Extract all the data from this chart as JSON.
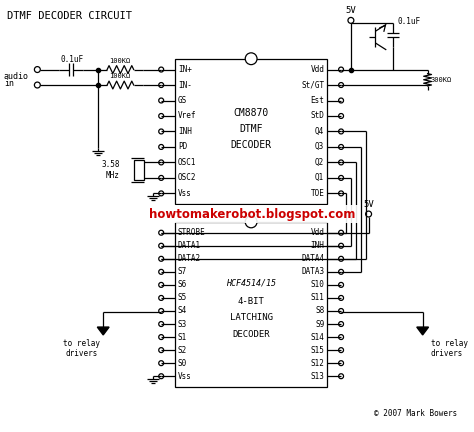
{
  "title": "DTMF DECODER CIRCUIT",
  "background_color": "#ffffff",
  "text_color": "#000000",
  "url_text": "howtomakerobot.blogspot.com",
  "url_color": "#cc0000",
  "copyright": "© 2007 Mark Bowers",
  "cm8870_label": [
    "CM8870",
    "DTMF",
    "DECODER"
  ],
  "cm8870_left_pins": [
    "IN+",
    "IN-",
    "GS",
    "Vref",
    "INH",
    "PD",
    "OSC1",
    "OSC2",
    "Vss"
  ],
  "cm8870_right_pins": [
    "Vdd",
    "St/GT",
    "Est",
    "StD",
    "Q4",
    "Q3",
    "Q2",
    "Q1",
    "TOE"
  ],
  "hcf_label": [
    "HCF4514/15",
    "4-BIT",
    "LATCHING",
    "DECODER"
  ],
  "hcf_left_pins": [
    "STROBE",
    "DATA1",
    "DATA2",
    "S7",
    "S6",
    "S5",
    "S4",
    "S3",
    "S1",
    "S2",
    "S0",
    "Vss"
  ],
  "hcf_right_pins": [
    "Vdd",
    "INH",
    "DATA4",
    "DATA3",
    "S10",
    "S11",
    "S8",
    "S9",
    "S14",
    "S15",
    "S12",
    "S13"
  ],
  "line_color": "#000000",
  "cap_01": "0.1uF",
  "res_100k": "100KΩ",
  "res_300k": "300KΩ",
  "crystal_label": "3.58\nMHz",
  "audio_label": [
    "audio",
    "in"
  ],
  "supply_5v": "5V"
}
